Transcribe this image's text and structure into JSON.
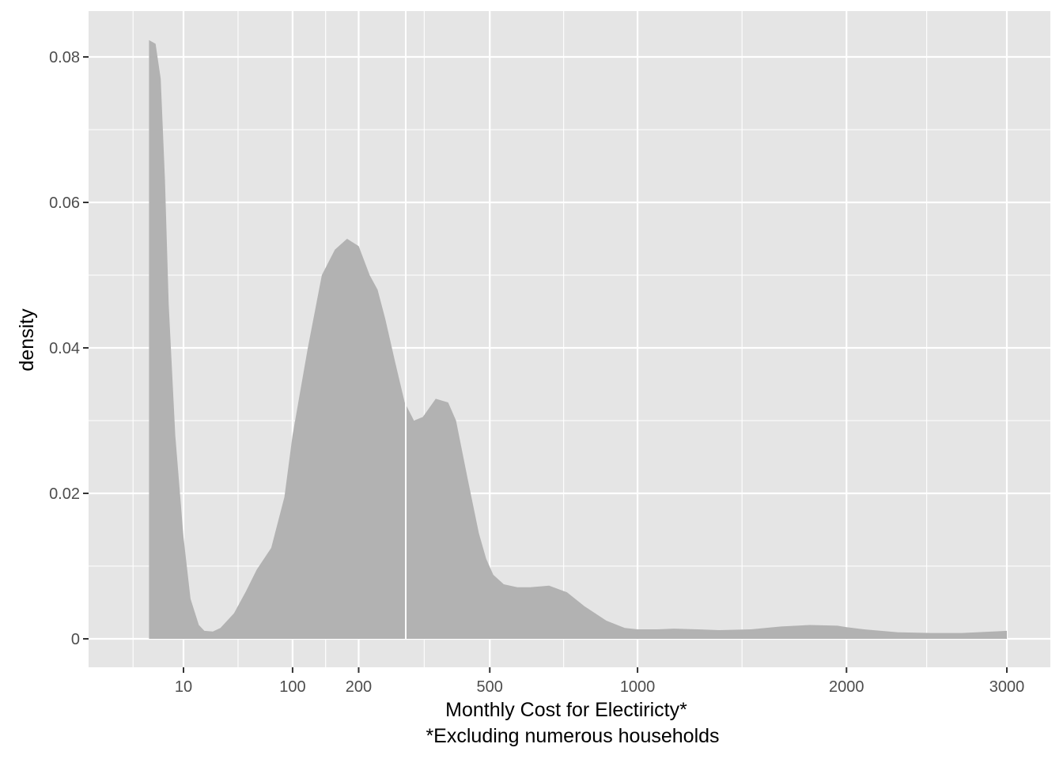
{
  "chart_data": {
    "type": "area",
    "xlabel": "Monthly Cost for Electiricty*",
    "xlabel_note": "*Excluding numerous households",
    "ylabel": "density",
    "x_scale": "sqrt",
    "xlim": [
      0,
      3100
    ],
    "ylim": [
      -0.004,
      0.085
    ],
    "x_ticks": [
      10,
      100,
      200,
      500,
      1000,
      2000,
      3000
    ],
    "x_tick_labels": [
      "10",
      "100",
      "200",
      "500",
      "1000",
      "2000",
      "3000"
    ],
    "y_ticks": [
      0,
      0.02,
      0.04,
      0.06,
      0.08
    ],
    "y_tick_labels": [
      "0",
      "0.02",
      "0.04",
      "0.06",
      "0.08"
    ],
    "grid": true,
    "colors": {
      "panel": "#e5e5e5",
      "grid": "#ffffff",
      "fill": "#b2b2b2",
      "tick_text": "#4d4d4d",
      "axis_text": "#000000"
    },
    "series": [
      {
        "x": [
          1,
          2,
          3,
          4,
          5,
          7,
          10,
          13,
          17,
          20,
          25,
          30,
          40,
          50,
          60,
          75,
          90,
          100,
          120,
          140,
          160,
          180,
          200,
          220,
          235,
          250,
          270,
          290,
          310,
          330,
          360,
          390,
          410,
          440,
          470,
          490,
          510,
          540,
          580,
          620,
          680,
          740,
          800,
          880,
          950,
          1000,
          1080,
          1150,
          1250,
          1350,
          1500,
          1650,
          1800,
          1950,
          2000,
          2100,
          2300,
          2500,
          2700,
          3000
        ],
        "y": [
          0.0823,
          0.0818,
          0.077,
          0.063,
          0.046,
          0.028,
          0.014,
          0.0055,
          0.0019,
          0.0011,
          0.001,
          0.0015,
          0.0035,
          0.0065,
          0.0095,
          0.0125,
          0.0195,
          0.028,
          0.04,
          0.05,
          0.0535,
          0.055,
          0.054,
          0.05,
          0.048,
          0.044,
          0.038,
          0.0325,
          0.03,
          0.0305,
          0.033,
          0.0325,
          0.03,
          0.022,
          0.0145,
          0.011,
          0.0088,
          0.0075,
          0.0071,
          0.0071,
          0.0073,
          0.0064,
          0.0045,
          0.0025,
          0.0015,
          0.0013,
          0.0013,
          0.0014,
          0.0013,
          0.0012,
          0.0013,
          0.0017,
          0.0019,
          0.0018,
          0.0016,
          0.0013,
          0.0009,
          0.0008,
          0.0008,
          0.0011
        ]
      }
    ]
  }
}
